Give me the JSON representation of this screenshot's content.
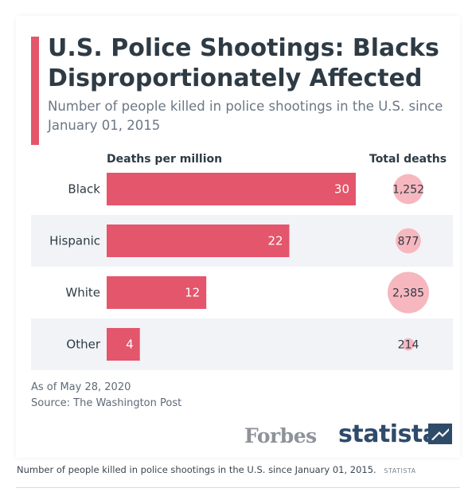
{
  "header": {
    "title": "U.S. Police Shootings: Blacks Disproportionately Affected",
    "subtitle": "Number of people killed in police shootings in the U.S. since January 01, 2015"
  },
  "colors": {
    "bar": "#e3566b",
    "bubble": "#f7b7bf",
    "row_band": "#f1f3f7",
    "text_dark": "#2e3b45"
  },
  "chart_data": {
    "type": "bar",
    "orientation": "horizontal",
    "categories": [
      "Black",
      "Hispanic",
      "White",
      "Other"
    ],
    "series": [
      {
        "name": "Deaths per million",
        "values": [
          30,
          22,
          12,
          4
        ]
      },
      {
        "name": "Total deaths",
        "values": [
          1252,
          877,
          2385,
          214
        ],
        "labels": [
          "1,252",
          "877",
          "2,385",
          "214"
        ]
      }
    ],
    "column_headers": [
      "Deaths per million",
      "Total deaths"
    ]
  },
  "footer": {
    "date_note": "As of May 28, 2020",
    "source": "Source: The Washington Post",
    "brand_forbes": "Forbes",
    "brand_statista": "statista"
  },
  "caption": {
    "text": "Number of people killed in police shootings in the U.S. since January 01, 2015.",
    "credit": "STATISTA"
  }
}
